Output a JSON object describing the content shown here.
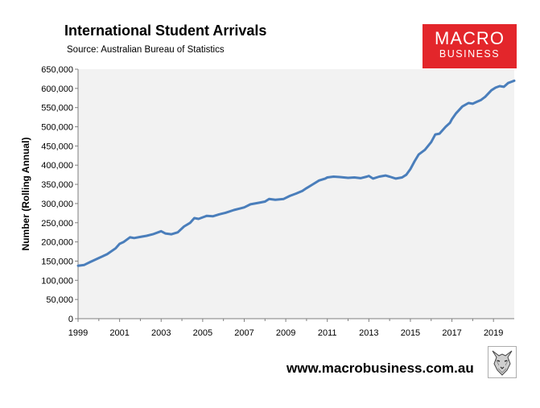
{
  "header": {
    "title": "International Student Arrivals",
    "source": "Source: Australian Bureau of Statistics"
  },
  "logo": {
    "line1": "MACRO",
    "line2": "BUSINESS",
    "color": "#e3262b"
  },
  "footer": {
    "website": "www.macrobusiness.com.au",
    "wolf_icon": "wolf-sketch-icon"
  },
  "chart_data": {
    "type": "line",
    "title": "International Student Arrivals",
    "ylabel": "Number (Rolling Annual)",
    "xlabel": "",
    "xlim": [
      1999,
      2020
    ],
    "ylim": [
      0,
      650000
    ],
    "yticks": [
      0,
      50000,
      100000,
      150000,
      200000,
      250000,
      300000,
      350000,
      400000,
      450000,
      500000,
      550000,
      600000,
      650000
    ],
    "ytick_labels": [
      "0",
      "50,000",
      "100,000",
      "150,000",
      "200,000",
      "250,000",
      "300,000",
      "350,000",
      "400,000",
      "450,000",
      "500,000",
      "550,000",
      "600,000",
      "650,000"
    ],
    "xticks": [
      1999,
      2001,
      2003,
      2005,
      2007,
      2009,
      2011,
      2013,
      2015,
      2017,
      2019
    ],
    "xtick_labels": [
      "1999",
      "2001",
      "2003",
      "2005",
      "2007",
      "2009",
      "2011",
      "2013",
      "2015",
      "2017",
      "2019"
    ],
    "grid": false,
    "background": "#f2f2f2",
    "line_color": "#4a7ebb",
    "series": [
      {
        "x": [
          1999.0,
          1999.3,
          1999.6,
          2000.0,
          2000.4,
          2000.8,
          2001.0,
          2001.2,
          2001.5,
          2001.7,
          2002.0,
          2002.3,
          2002.6,
          2003.0,
          2003.2,
          2003.5,
          2003.8,
          2004.1,
          2004.4,
          2004.6,
          2004.8,
          2005.2,
          2005.5,
          2005.8,
          2006.1,
          2006.5,
          2006.8,
          2007.0,
          2007.3,
          2007.7,
          2008.0,
          2008.2,
          2008.5,
          2008.9,
          2009.2,
          2009.5,
          2009.8,
          2010.0,
          2010.3,
          2010.6,
          2010.9,
          2011.0,
          2011.3,
          2011.6,
          2012.0,
          2012.3,
          2012.6,
          2012.9,
          2013.0,
          2013.2,
          2013.5,
          2013.8,
          2014.0,
          2014.3,
          2014.6,
          2014.8,
          2015.0,
          2015.2,
          2015.4,
          2015.7,
          2016.0,
          2016.2,
          2016.4,
          2016.7,
          2016.9,
          2017.0,
          2017.2,
          2017.5,
          2017.8,
          2018.0,
          2018.2,
          2018.4,
          2018.6,
          2018.9,
          2019.1,
          2019.3,
          2019.5,
          2019.7,
          2020.0
        ],
        "values": [
          138000,
          140000,
          148000,
          158000,
          168000,
          183000,
          195000,
          200000,
          212000,
          210000,
          213000,
          216000,
          220000,
          228000,
          222000,
          220000,
          225000,
          240000,
          250000,
          262000,
          260000,
          268000,
          267000,
          272000,
          276000,
          283000,
          287000,
          290000,
          298000,
          302000,
          305000,
          312000,
          310000,
          312000,
          320000,
          326000,
          333000,
          340000,
          350000,
          360000,
          365000,
          368000,
          370000,
          369000,
          367000,
          368000,
          366000,
          370000,
          372000,
          365000,
          370000,
          373000,
          370000,
          365000,
          368000,
          375000,
          390000,
          410000,
          428000,
          440000,
          460000,
          480000,
          482000,
          500000,
          510000,
          520000,
          535000,
          553000,
          562000,
          560000,
          565000,
          570000,
          578000,
          595000,
          602000,
          606000,
          604000,
          614000,
          620000
        ]
      }
    ]
  }
}
